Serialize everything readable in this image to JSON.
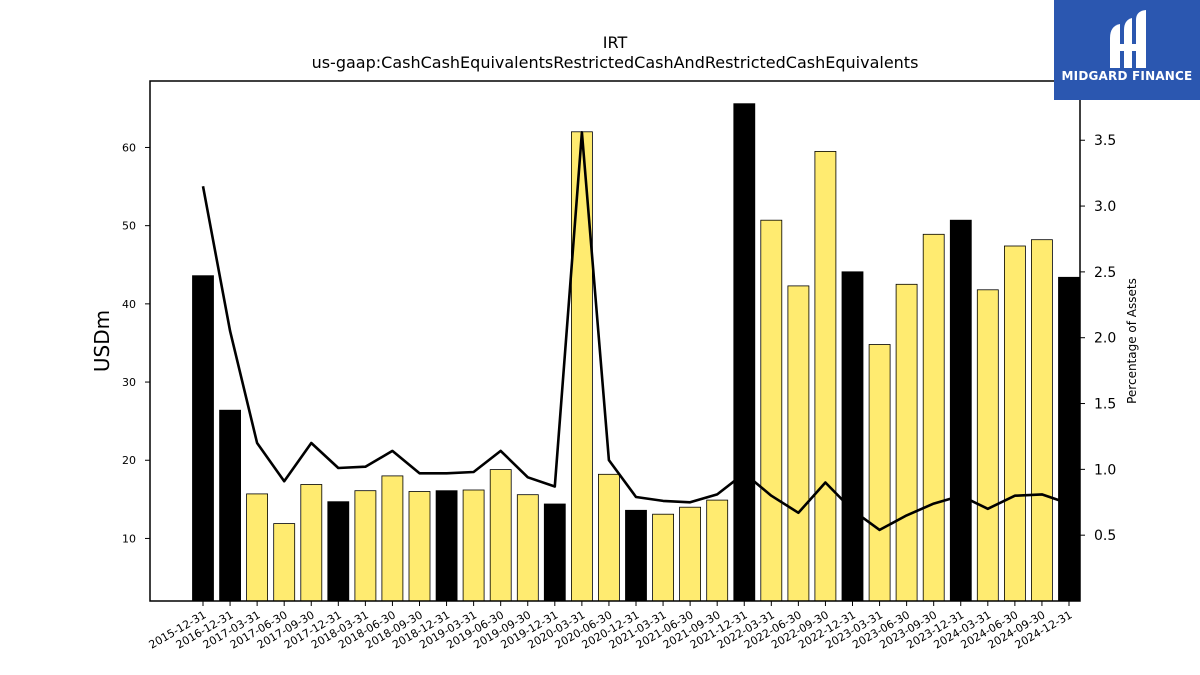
{
  "chart_data": {
    "type": "bar",
    "title": "IRT",
    "subtitle": "us-gaap:CashCashEquivalentsRestrictedCashAndRestrictedCashEquivalents",
    "ylabel": "USDm",
    "ylabel_right": "Percentage of Assets",
    "ylim": [
      2,
      68.5
    ],
    "ylim_right": [
      0,
      3.95
    ],
    "yticks": [
      10,
      20,
      30,
      40,
      50,
      60
    ],
    "yticks_right": [
      0.5,
      1.0,
      1.5,
      2.0,
      2.5,
      3.0,
      3.5
    ],
    "grid": false,
    "categories": [
      "2015-12-31",
      "2016-12-31",
      "2017-03-31",
      "2017-06-30",
      "2017-09-30",
      "2017-12-31",
      "2018-03-31",
      "2018-06-30",
      "2018-09-30",
      "2018-12-31",
      "2019-03-31",
      "2019-06-30",
      "2019-09-30",
      "2019-12-31",
      "2020-03-31",
      "2020-06-30",
      "2020-12-31",
      "2021-03-31",
      "2021-06-30",
      "2021-09-30",
      "2021-12-31",
      "2022-03-31",
      "2022-06-30",
      "2022-09-30",
      "2022-12-31",
      "2023-03-31",
      "2023-06-30",
      "2023-09-30",
      "2023-12-31",
      "2024-03-31",
      "2024-06-30",
      "2024-09-30",
      "2024-12-31"
    ],
    "series": [
      {
        "kind": "bar",
        "values": [
          43.6,
          26.4,
          15.7,
          11.9,
          16.9,
          14.7,
          16.1,
          18.0,
          16.0,
          16.1,
          16.2,
          18.8,
          15.6,
          14.4,
          62.0,
          18.2,
          13.6,
          13.1,
          14.0,
          14.9,
          65.6,
          50.7,
          42.3,
          59.5,
          44.1,
          34.8,
          42.5,
          48.9,
          50.7,
          41.8,
          47.4,
          48.2,
          43.4
        ]
      },
      {
        "kind": "line",
        "axis": "right",
        "values": [
          3.15,
          2.05,
          1.2,
          0.91,
          1.2,
          1.01,
          1.02,
          1.14,
          0.97,
          0.97,
          0.98,
          1.14,
          0.94,
          0.87,
          3.56,
          1.07,
          0.79,
          0.76,
          0.75,
          0.81,
          0.97,
          0.8,
          0.67,
          0.9,
          0.69,
          0.54,
          0.65,
          0.74,
          0.8,
          0.7,
          0.8,
          0.81,
          0.74
        ]
      }
    ],
    "colors": {
      "annual_bar": "#000000",
      "quarterly_bar": "#ffeb70",
      "line": "#000000"
    },
    "annual_flags": [
      true,
      true,
      false,
      false,
      false,
      true,
      false,
      false,
      false,
      true,
      false,
      false,
      false,
      true,
      false,
      false,
      true,
      false,
      false,
      false,
      true,
      false,
      false,
      false,
      true,
      false,
      false,
      false,
      true,
      false,
      false,
      false,
      true
    ]
  },
  "logo": {
    "text": "MIDGARD FINANCE",
    "color": "#2b57b0"
  }
}
